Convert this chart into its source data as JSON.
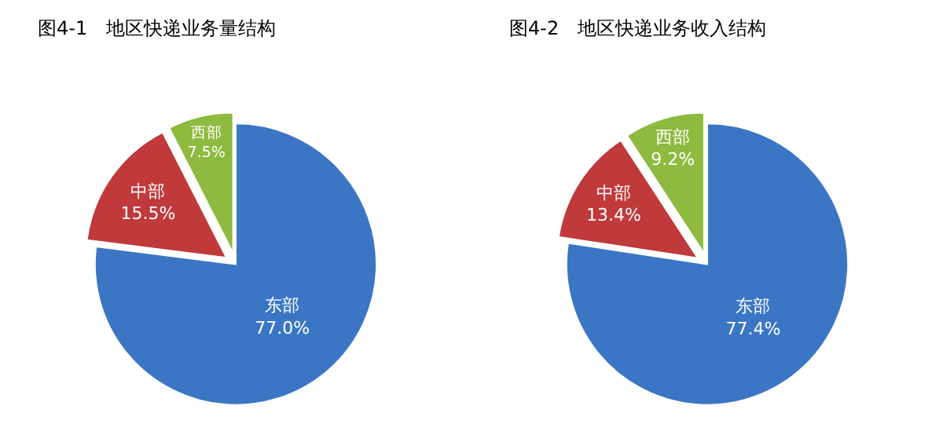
{
  "chart_data": [
    {
      "type": "pie",
      "title": "图4-1　地区快递业务量结构",
      "categories": [
        "东部",
        "中部",
        "西部"
      ],
      "values": [
        77.0,
        15.5,
        7.5
      ],
      "colors": [
        "#3b76c5",
        "#c0393b",
        "#8dba3f"
      ],
      "value_labels": [
        "77.0%",
        "15.5%",
        "7.5%"
      ],
      "legend": false
    },
    {
      "type": "pie",
      "title": "图4-2　地区快递业务收入结构",
      "categories": [
        "东部",
        "中部",
        "西部"
      ],
      "values": [
        77.4,
        13.4,
        9.2
      ],
      "colors": [
        "#3b76c5",
        "#c0393b",
        "#8dba3f"
      ],
      "value_labels": [
        "77.4%",
        "13.4%",
        "9.2%"
      ],
      "legend": false
    }
  ]
}
